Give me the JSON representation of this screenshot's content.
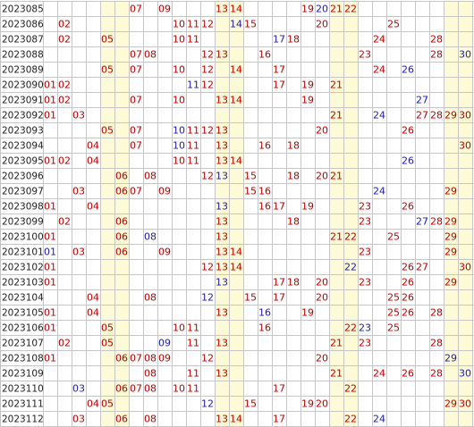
{
  "colors": {
    "red": "#c00000",
    "blue": "#1c1cb4",
    "stripe": "#fdfbd6",
    "grid": "#c6c6c6"
  },
  "chart_data": {
    "type": "table",
    "columns": 30,
    "rows": [
      {
        "issue": "2023085",
        "nums": [
          {
            "n": "07",
            "c": "red"
          },
          {
            "n": "09",
            "c": "red"
          },
          {
            "n": "13",
            "c": "red"
          },
          {
            "n": "14",
            "c": "red"
          },
          {
            "n": "19",
            "c": "red"
          },
          {
            "n": "20",
            "c": "blue"
          },
          {
            "n": "21",
            "c": "red"
          },
          {
            "n": "22",
            "c": "red"
          }
        ]
      },
      {
        "issue": "2023086",
        "nums": [
          {
            "n": "02",
            "c": "red"
          },
          {
            "n": "10",
            "c": "red"
          },
          {
            "n": "11",
            "c": "red"
          },
          {
            "n": "12",
            "c": "red"
          },
          {
            "n": "14",
            "c": "blue"
          },
          {
            "n": "15",
            "c": "red"
          },
          {
            "n": "20",
            "c": "red"
          },
          {
            "n": "25",
            "c": "red"
          }
        ]
      },
      {
        "issue": "2023087",
        "nums": [
          {
            "n": "02",
            "c": "red"
          },
          {
            "n": "05",
            "c": "red"
          },
          {
            "n": "10",
            "c": "red"
          },
          {
            "n": "11",
            "c": "red"
          },
          {
            "n": "17",
            "c": "blue"
          },
          {
            "n": "18",
            "c": "red"
          },
          {
            "n": "24",
            "c": "red"
          },
          {
            "n": "28",
            "c": "red"
          }
        ]
      },
      {
        "issue": "2023088",
        "nums": [
          {
            "n": "07",
            "c": "red"
          },
          {
            "n": "08",
            "c": "red"
          },
          {
            "n": "12",
            "c": "red"
          },
          {
            "n": "13",
            "c": "red"
          },
          {
            "n": "16",
            "c": "red"
          },
          {
            "n": "23",
            "c": "red"
          },
          {
            "n": "28",
            "c": "red"
          },
          {
            "n": "30",
            "c": "blue"
          }
        ]
      },
      {
        "issue": "2023089",
        "nums": [
          {
            "n": "05",
            "c": "red"
          },
          {
            "n": "07",
            "c": "red"
          },
          {
            "n": "10",
            "c": "red"
          },
          {
            "n": "12",
            "c": "red"
          },
          {
            "n": "14",
            "c": "red"
          },
          {
            "n": "17",
            "c": "red"
          },
          {
            "n": "24",
            "c": "red"
          },
          {
            "n": "26",
            "c": "blue"
          }
        ]
      },
      {
        "issue": "2023090",
        "nums": [
          {
            "n": "01",
            "c": "red"
          },
          {
            "n": "02",
            "c": "red"
          },
          {
            "n": "11",
            "c": "blue"
          },
          {
            "n": "12",
            "c": "red"
          },
          {
            "n": "17",
            "c": "red"
          },
          {
            "n": "19",
            "c": "red"
          },
          {
            "n": "21",
            "c": "red"
          }
        ]
      },
      {
        "issue": "2023091",
        "nums": [
          {
            "n": "01",
            "c": "red"
          },
          {
            "n": "02",
            "c": "red"
          },
          {
            "n": "07",
            "c": "red"
          },
          {
            "n": "10",
            "c": "red"
          },
          {
            "n": "13",
            "c": "red"
          },
          {
            "n": "14",
            "c": "red"
          },
          {
            "n": "19",
            "c": "red"
          },
          {
            "n": "27",
            "c": "blue"
          }
        ]
      },
      {
        "issue": "2023092",
        "nums": [
          {
            "n": "01",
            "c": "red"
          },
          {
            "n": "03",
            "c": "red"
          },
          {
            "n": "21",
            "c": "red"
          },
          {
            "n": "24",
            "c": "blue"
          },
          {
            "n": "27",
            "c": "red"
          },
          {
            "n": "28",
            "c": "red"
          },
          {
            "n": "29",
            "c": "red"
          },
          {
            "n": "30",
            "c": "red"
          }
        ]
      },
      {
        "issue": "2023093",
        "nums": [
          {
            "n": "05",
            "c": "red"
          },
          {
            "n": "07",
            "c": "red"
          },
          {
            "n": "10",
            "c": "blue"
          },
          {
            "n": "11",
            "c": "red"
          },
          {
            "n": "12",
            "c": "red"
          },
          {
            "n": "13",
            "c": "red"
          },
          {
            "n": "20",
            "c": "red"
          },
          {
            "n": "26",
            "c": "red"
          }
        ]
      },
      {
        "issue": "2023094",
        "nums": [
          {
            "n": "04",
            "c": "red"
          },
          {
            "n": "07",
            "c": "red"
          },
          {
            "n": "10",
            "c": "blue"
          },
          {
            "n": "11",
            "c": "red"
          },
          {
            "n": "13",
            "c": "red"
          },
          {
            "n": "16",
            "c": "red"
          },
          {
            "n": "18",
            "c": "red"
          },
          {
            "n": "30",
            "c": "red"
          }
        ]
      },
      {
        "issue": "2023095",
        "nums": [
          {
            "n": "01",
            "c": "red"
          },
          {
            "n": "02",
            "c": "red"
          },
          {
            "n": "04",
            "c": "red"
          },
          {
            "n": "10",
            "c": "red"
          },
          {
            "n": "11",
            "c": "red"
          },
          {
            "n": "13",
            "c": "red"
          },
          {
            "n": "14",
            "c": "red"
          },
          {
            "n": "26",
            "c": "blue"
          }
        ]
      },
      {
        "issue": "2023096",
        "nums": [
          {
            "n": "06",
            "c": "red"
          },
          {
            "n": "08",
            "c": "red"
          },
          {
            "n": "12",
            "c": "red"
          },
          {
            "n": "13",
            "c": "blue"
          },
          {
            "n": "15",
            "c": "red"
          },
          {
            "n": "18",
            "c": "red"
          },
          {
            "n": "20",
            "c": "red"
          },
          {
            "n": "21",
            "c": "red"
          }
        ]
      },
      {
        "issue": "2023097",
        "nums": [
          {
            "n": "03",
            "c": "red"
          },
          {
            "n": "06",
            "c": "red"
          },
          {
            "n": "07",
            "c": "red"
          },
          {
            "n": "09",
            "c": "red"
          },
          {
            "n": "15",
            "c": "red"
          },
          {
            "n": "16",
            "c": "red"
          },
          {
            "n": "24",
            "c": "blue"
          },
          {
            "n": "29",
            "c": "red"
          }
        ]
      },
      {
        "issue": "2023098",
        "nums": [
          {
            "n": "01",
            "c": "red"
          },
          {
            "n": "04",
            "c": "red"
          },
          {
            "n": "13",
            "c": "blue"
          },
          {
            "n": "16",
            "c": "red"
          },
          {
            "n": "17",
            "c": "red"
          },
          {
            "n": "19",
            "c": "red"
          },
          {
            "n": "23",
            "c": "red"
          },
          {
            "n": "26",
            "c": "red"
          }
        ]
      },
      {
        "issue": "2023099",
        "nums": [
          {
            "n": "02",
            "c": "red"
          },
          {
            "n": "06",
            "c": "red"
          },
          {
            "n": "13",
            "c": "red"
          },
          {
            "n": "18",
            "c": "red"
          },
          {
            "n": "23",
            "c": "red"
          },
          {
            "n": "27",
            "c": "blue"
          },
          {
            "n": "28",
            "c": "red"
          },
          {
            "n": "29",
            "c": "red"
          }
        ]
      },
      {
        "issue": "2023100",
        "nums": [
          {
            "n": "01",
            "c": "red"
          },
          {
            "n": "06",
            "c": "red"
          },
          {
            "n": "08",
            "c": "blue"
          },
          {
            "n": "13",
            "c": "red"
          },
          {
            "n": "21",
            "c": "red"
          },
          {
            "n": "22",
            "c": "red"
          },
          {
            "n": "25",
            "c": "red"
          },
          {
            "n": "29",
            "c": "red"
          }
        ]
      },
      {
        "issue": "2023101",
        "nums": [
          {
            "n": "01",
            "c": "blue"
          },
          {
            "n": "03",
            "c": "red"
          },
          {
            "n": "06",
            "c": "red"
          },
          {
            "n": "09",
            "c": "red"
          },
          {
            "n": "13",
            "c": "red"
          },
          {
            "n": "14",
            "c": "red"
          },
          {
            "n": "23",
            "c": "red"
          },
          {
            "n": "29",
            "c": "red"
          }
        ]
      },
      {
        "issue": "2023102",
        "nums": [
          {
            "n": "01",
            "c": "red"
          },
          {
            "n": "12",
            "c": "red"
          },
          {
            "n": "13",
            "c": "red"
          },
          {
            "n": "14",
            "c": "red"
          },
          {
            "n": "22",
            "c": "blue"
          },
          {
            "n": "26",
            "c": "red"
          },
          {
            "n": "27",
            "c": "red"
          },
          {
            "n": "30",
            "c": "red"
          }
        ]
      },
      {
        "issue": "2023103",
        "nums": [
          {
            "n": "01",
            "c": "red"
          },
          {
            "n": "13",
            "c": "blue"
          },
          {
            "n": "17",
            "c": "red"
          },
          {
            "n": "18",
            "c": "red"
          },
          {
            "n": "20",
            "c": "red"
          },
          {
            "n": "23",
            "c": "red"
          },
          {
            "n": "26",
            "c": "red"
          },
          {
            "n": "29",
            "c": "red"
          }
        ]
      },
      {
        "issue": "2023104",
        "nums": [
          {
            "n": "04",
            "c": "red"
          },
          {
            "n": "08",
            "c": "red"
          },
          {
            "n": "12",
            "c": "blue"
          },
          {
            "n": "15",
            "c": "red"
          },
          {
            "n": "17",
            "c": "red"
          },
          {
            "n": "20",
            "c": "red"
          },
          {
            "n": "25",
            "c": "red"
          },
          {
            "n": "26",
            "c": "red"
          }
        ]
      },
      {
        "issue": "2023105",
        "nums": [
          {
            "n": "01",
            "c": "red"
          },
          {
            "n": "04",
            "c": "red"
          },
          {
            "n": "13",
            "c": "red"
          },
          {
            "n": "16",
            "c": "blue"
          },
          {
            "n": "19",
            "c": "red"
          },
          {
            "n": "25",
            "c": "red"
          },
          {
            "n": "26",
            "c": "red"
          },
          {
            "n": "28",
            "c": "red"
          }
        ]
      },
      {
        "issue": "2023106",
        "nums": [
          {
            "n": "01",
            "c": "red"
          },
          {
            "n": "05",
            "c": "red"
          },
          {
            "n": "10",
            "c": "red"
          },
          {
            "n": "11",
            "c": "red"
          },
          {
            "n": "16",
            "c": "red"
          },
          {
            "n": "22",
            "c": "red"
          },
          {
            "n": "23",
            "c": "blue"
          },
          {
            "n": "25",
            "c": "red"
          }
        ]
      },
      {
        "issue": "2023107",
        "nums": [
          {
            "n": "02",
            "c": "red"
          },
          {
            "n": "05",
            "c": "red"
          },
          {
            "n": "09",
            "c": "blue"
          },
          {
            "n": "11",
            "c": "red"
          },
          {
            "n": "13",
            "c": "red"
          },
          {
            "n": "21",
            "c": "red"
          },
          {
            "n": "23",
            "c": "red"
          },
          {
            "n": "28",
            "c": "red"
          }
        ]
      },
      {
        "issue": "2023108",
        "nums": [
          {
            "n": "01",
            "c": "red"
          },
          {
            "n": "06",
            "c": "red"
          },
          {
            "n": "07",
            "c": "red"
          },
          {
            "n": "08",
            "c": "red"
          },
          {
            "n": "09",
            "c": "red"
          },
          {
            "n": "12",
            "c": "red"
          },
          {
            "n": "20",
            "c": "red"
          },
          {
            "n": "29",
            "c": "blue"
          }
        ]
      },
      {
        "issue": "2023109",
        "nums": [
          {
            "n": "08",
            "c": "red"
          },
          {
            "n": "11",
            "c": "red"
          },
          {
            "n": "13",
            "c": "red"
          },
          {
            "n": "21",
            "c": "red"
          },
          {
            "n": "24",
            "c": "red"
          },
          {
            "n": "26",
            "c": "red"
          },
          {
            "n": "28",
            "c": "red"
          },
          {
            "n": "30",
            "c": "blue"
          }
        ]
      },
      {
        "issue": "2023110",
        "nums": [
          {
            "n": "03",
            "c": "blue"
          },
          {
            "n": "06",
            "c": "red"
          },
          {
            "n": "07",
            "c": "red"
          },
          {
            "n": "08",
            "c": "red"
          },
          {
            "n": "10",
            "c": "red"
          },
          {
            "n": "11",
            "c": "red"
          },
          {
            "n": "17",
            "c": "red"
          },
          {
            "n": "22",
            "c": "red"
          }
        ]
      },
      {
        "issue": "2023111",
        "nums": [
          {
            "n": "04",
            "c": "red"
          },
          {
            "n": "05",
            "c": "red"
          },
          {
            "n": "12",
            "c": "blue"
          },
          {
            "n": "15",
            "c": "red"
          },
          {
            "n": "19",
            "c": "red"
          },
          {
            "n": "20",
            "c": "red"
          },
          {
            "n": "29",
            "c": "red"
          },
          {
            "n": "30",
            "c": "red"
          }
        ]
      },
      {
        "issue": "2023112",
        "nums": [
          {
            "n": "03",
            "c": "red"
          },
          {
            "n": "06",
            "c": "red"
          },
          {
            "n": "08",
            "c": "red"
          },
          {
            "n": "13",
            "c": "red"
          },
          {
            "n": "14",
            "c": "red"
          },
          {
            "n": "17",
            "c": "red"
          },
          {
            "n": "22",
            "c": "red"
          },
          {
            "n": "24",
            "c": "blue"
          }
        ]
      }
    ],
    "highlight_columns": [
      5,
      6,
      13,
      14,
      21,
      22,
      29,
      30
    ]
  }
}
